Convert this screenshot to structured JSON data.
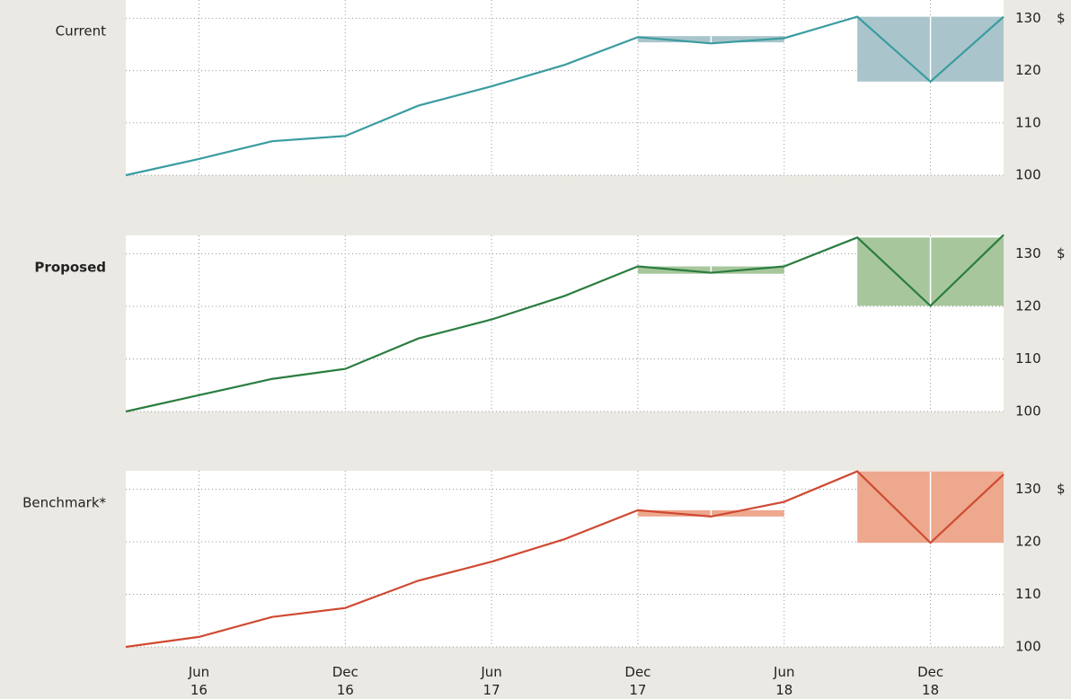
{
  "chart_data": [
    {
      "type": "line",
      "label": "Current",
      "label_bold": false,
      "y_unit": "$",
      "series": [
        {
          "name": "Current",
          "color": "#3a9ca0",
          "values": [
            100,
            103.1,
            106.5,
            107.5,
            113.3,
            117.0,
            121.1,
            126.4,
            125.2,
            126.2,
            130.3,
            117.9,
            130.3
          ]
        }
      ],
      "bands": [
        {
          "x": [
            7,
            9
          ],
          "range": [
            125.4,
            126.6
          ],
          "color": "#a9c5cb"
        },
        {
          "x": [
            10,
            12
          ],
          "range": [
            117.9,
            130.3
          ],
          "color": "#a9c5cb"
        }
      ],
      "ylim": [
        100,
        133.5
      ],
      "yticks": [
        100,
        110,
        120,
        130
      ],
      "grid": true
    },
    {
      "type": "line",
      "label": "Proposed",
      "label_bold": true,
      "y_unit": "$",
      "series": [
        {
          "name": "Proposed",
          "color": "#2a7d3f",
          "values": [
            100,
            103.1,
            106.2,
            108.1,
            113.9,
            117.5,
            122.0,
            127.6,
            126.4,
            127.6,
            133.1,
            120.1,
            133.6
          ]
        }
      ],
      "bands": [
        {
          "x": [
            7,
            9
          ],
          "range": [
            126.2,
            127.6
          ],
          "color": "#a8c69c"
        },
        {
          "x": [
            10,
            12
          ],
          "range": [
            120.1,
            133.1
          ],
          "color": "#a8c69c"
        }
      ],
      "ylim": [
        100,
        133.5
      ],
      "yticks": [
        100,
        110,
        120,
        130
      ],
      "grid": true
    },
    {
      "type": "line",
      "label": "Benchmark*",
      "label_bold": false,
      "y_unit": "$",
      "categories": [
        null,
        "Jun 16",
        null,
        "Dec 16",
        null,
        "Jun 17",
        null,
        "Dec 17",
        null,
        "Jun 18",
        null,
        "Dec 18",
        null
      ],
      "series": [
        {
          "name": "Benchmark*",
          "color": "#cf4a32",
          "values": [
            100,
            101.9,
            105.7,
            107.4,
            112.6,
            116.2,
            120.5,
            126.0,
            124.8,
            127.6,
            133.4,
            119.8,
            132.8
          ]
        }
      ],
      "bands": [
        {
          "x": [
            7,
            9
          ],
          "range": [
            124.8,
            126.0
          ],
          "color": "#eda88e"
        },
        {
          "x": [
            10,
            12
          ],
          "range": [
            119.8,
            133.4
          ],
          "color": "#eda88e"
        }
      ],
      "ylim": [
        100,
        133.5
      ],
      "yticks": [
        100,
        110,
        120,
        130
      ],
      "grid": true
    }
  ]
}
